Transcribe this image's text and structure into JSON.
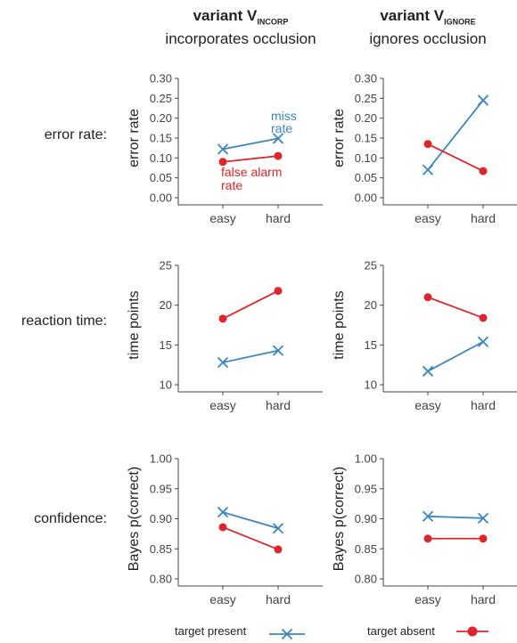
{
  "columns": [
    {
      "title_prefix": "variant V",
      "subscript": "INCORP",
      "subtitle": "incorporates occlusion"
    },
    {
      "title_prefix": "variant V",
      "subscript": "IGNORE",
      "subtitle": "ignores occlusion"
    }
  ],
  "rows": [
    {
      "label": "error rate:",
      "ylabel": "error rate"
    },
    {
      "label": "reaction time:",
      "ylabel": "time points"
    },
    {
      "label": "confidence:",
      "ylabel": "Bayes p(correct)"
    }
  ],
  "legend": {
    "target_present": "target present",
    "target_absent": "target absent"
  },
  "annotations": {
    "miss_rate": [
      "miss",
      "rate"
    ],
    "false_alarm_rate": [
      "false alarm",
      "rate"
    ]
  },
  "colors": {
    "target_present": "#3a86c4",
    "target_absent": "#e0242b",
    "axis": "#444444"
  },
  "chart_data": [
    {
      "type": "line",
      "row": "error rate",
      "column": "variant V INCORP",
      "categories": [
        "easy",
        "hard"
      ],
      "ylabel": "error rate",
      "ylim": [
        0,
        0.3
      ],
      "yticks": [
        0.0,
        0.05,
        0.1,
        0.15,
        0.2,
        0.25,
        0.3
      ],
      "series": [
        {
          "name": "target present",
          "values": [
            0.122,
            0.149
          ]
        },
        {
          "name": "target absent",
          "values": [
            0.09,
            0.105
          ]
        }
      ]
    },
    {
      "type": "line",
      "row": "error rate",
      "column": "variant V IGNORE",
      "categories": [
        "easy",
        "hard"
      ],
      "ylabel": "error rate",
      "ylim": [
        0,
        0.3
      ],
      "yticks": [
        0.0,
        0.05,
        0.1,
        0.15,
        0.2,
        0.25,
        0.3
      ],
      "series": [
        {
          "name": "target present",
          "values": [
            0.07,
            0.245
          ]
        },
        {
          "name": "target absent",
          "values": [
            0.135,
            0.067
          ]
        }
      ]
    },
    {
      "type": "line",
      "row": "reaction time",
      "column": "variant V INCORP",
      "categories": [
        "easy",
        "hard"
      ],
      "ylabel": "time points",
      "ylim": [
        10,
        25
      ],
      "yticks": [
        10,
        15,
        20,
        25
      ],
      "series": [
        {
          "name": "target present",
          "values": [
            12.8,
            14.3
          ]
        },
        {
          "name": "target absent",
          "values": [
            18.3,
            21.8
          ]
        }
      ]
    },
    {
      "type": "line",
      "row": "reaction time",
      "column": "variant V IGNORE",
      "categories": [
        "easy",
        "hard"
      ],
      "ylabel": "time points",
      "ylim": [
        10,
        25
      ],
      "yticks": [
        10,
        15,
        20,
        25
      ],
      "series": [
        {
          "name": "target present",
          "values": [
            11.7,
            15.4
          ]
        },
        {
          "name": "target absent",
          "values": [
            21.0,
            18.4
          ]
        }
      ]
    },
    {
      "type": "line",
      "row": "confidence",
      "column": "variant V INCORP",
      "categories": [
        "easy",
        "hard"
      ],
      "ylabel": "Bayes p(correct)",
      "ylim": [
        0.8,
        1.0
      ],
      "yticks": [
        0.8,
        0.85,
        0.9,
        0.95,
        1.0
      ],
      "series": [
        {
          "name": "target present",
          "values": [
            0.911,
            0.884
          ]
        },
        {
          "name": "target absent",
          "values": [
            0.886,
            0.849
          ]
        }
      ]
    },
    {
      "type": "line",
      "row": "confidence",
      "column": "variant V IGNORE",
      "categories": [
        "easy",
        "hard"
      ],
      "ylabel": "Bayes p(correct)",
      "ylim": [
        0.8,
        1.0
      ],
      "yticks": [
        0.8,
        0.85,
        0.9,
        0.95,
        1.0
      ],
      "series": [
        {
          "name": "target present",
          "values": [
            0.904,
            0.901
          ]
        },
        {
          "name": "target absent",
          "values": [
            0.867,
            0.867
          ]
        }
      ]
    }
  ]
}
